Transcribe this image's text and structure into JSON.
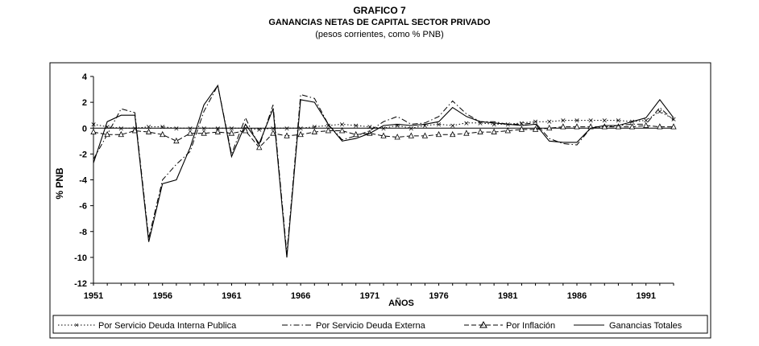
{
  "chart_data": {
    "type": "line",
    "title": "GRAFICO 7",
    "subtitle": "GANANCIAS NETAS DE CAPITAL SECTOR PRIVADO",
    "note": "(pesos corrientes, como % PNB)",
    "xlabel": "AÑOS",
    "ylabel": "% PNB",
    "ylim": [
      -12,
      4
    ],
    "xlim": [
      1951,
      1993
    ],
    "grid": false,
    "legend_position": "bottom",
    "x_ticks": [
      "1951",
      "1956",
      "1961",
      "1966",
      "1971",
      "1976",
      "1981",
      "1986",
      "1991"
    ],
    "y_ticks": [
      "4",
      "2",
      "0",
      "-2",
      "-4",
      "-6",
      "-8",
      "-10",
      "-12"
    ],
    "x": [
      1951,
      1952,
      1953,
      1954,
      1955,
      1956,
      1957,
      1958,
      1959,
      1960,
      1961,
      1962,
      1963,
      1964,
      1965,
      1966,
      1967,
      1968,
      1969,
      1970,
      1971,
      1972,
      1973,
      1974,
      1975,
      1976,
      1977,
      1978,
      1979,
      1980,
      1981,
      1982,
      1983,
      1984,
      1985,
      1986,
      1987,
      1988,
      1989,
      1990,
      1991,
      1992,
      1993
    ],
    "series": [
      {
        "name": "Por Servicio Deuda Interna Publica",
        "style": "dotted-x",
        "values": [
          0.3,
          0.1,
          0,
          0,
          0.1,
          0.1,
          0,
          0,
          0,
          0,
          0,
          0,
          -0.1,
          0,
          0,
          0,
          0.1,
          0.2,
          0.3,
          0.2,
          0.1,
          0,
          0.2,
          0,
          0.2,
          0.3,
          0.2,
          0.4,
          0.4,
          0.3,
          0.3,
          0.4,
          0.5,
          0.5,
          0.6,
          0.6,
          0.6,
          0.6,
          0.6,
          0.5,
          0.6,
          1.3,
          0.7
        ]
      },
      {
        "name": "Por Servicio Deuda Externa",
        "style": "dash-dot",
        "values": [
          -2.4,
          -0.5,
          1.5,
          1.2,
          -8.5,
          -4,
          -2.8,
          -1.8,
          1.3,
          3.3,
          -2,
          0.8,
          -1.4,
          1.8,
          -9.7,
          2.6,
          2.3,
          0.3,
          -0.9,
          -0.6,
          -0.2,
          0.5,
          0.9,
          0.3,
          0.4,
          0.9,
          2.1,
          1.1,
          0.5,
          0.5,
          0.3,
          0.3,
          0.4,
          -0.8,
          -1.2,
          -1.3,
          0,
          0.1,
          0.2,
          0.3,
          0.3,
          1.6,
          0.6
        ]
      },
      {
        "name": "Por Inflación",
        "style": "dashed-triangle",
        "values": [
          -0.3,
          -0.5,
          -0.5,
          -0.2,
          -0.3,
          -0.5,
          -1,
          -0.4,
          -0.4,
          -0.3,
          -0.4,
          -0.2,
          -1.5,
          -0.4,
          -0.6,
          -0.5,
          -0.3,
          -0.2,
          -0.2,
          -0.5,
          -0.4,
          -0.6,
          -0.7,
          -0.6,
          -0.6,
          -0.5,
          -0.5,
          -0.4,
          -0.3,
          -0.3,
          -0.2,
          -0.1,
          -0.1,
          0,
          0.1,
          0.1,
          0.1,
          0.1,
          0.1,
          0.1,
          0.2,
          0.1,
          0.1
        ]
      },
      {
        "name": "Ganancias Totales",
        "style": "solid",
        "values": [
          -2.7,
          0.5,
          1,
          1,
          -8.8,
          -4.3,
          -4,
          -1.5,
          1.8,
          3.3,
          -2.2,
          0.3,
          -1.2,
          1.5,
          -10,
          2.2,
          2,
          0.3,
          -1,
          -0.8,
          -0.4,
          0.2,
          0.3,
          0.2,
          0.3,
          0.5,
          1.6,
          0.9,
          0.5,
          0.4,
          0.3,
          0.2,
          0.3,
          -1,
          -1.1,
          -1.1,
          0,
          0.2,
          0.2,
          0.5,
          0.8,
          2.2,
          0.8
        ]
      }
    ]
  },
  "legend": {
    "item1": "Por Servicio Deuda Interna Publica",
    "item2": "Por Servicio Deuda Externa",
    "item3": "Por Inflación",
    "item4": "Ganancias Totales"
  }
}
